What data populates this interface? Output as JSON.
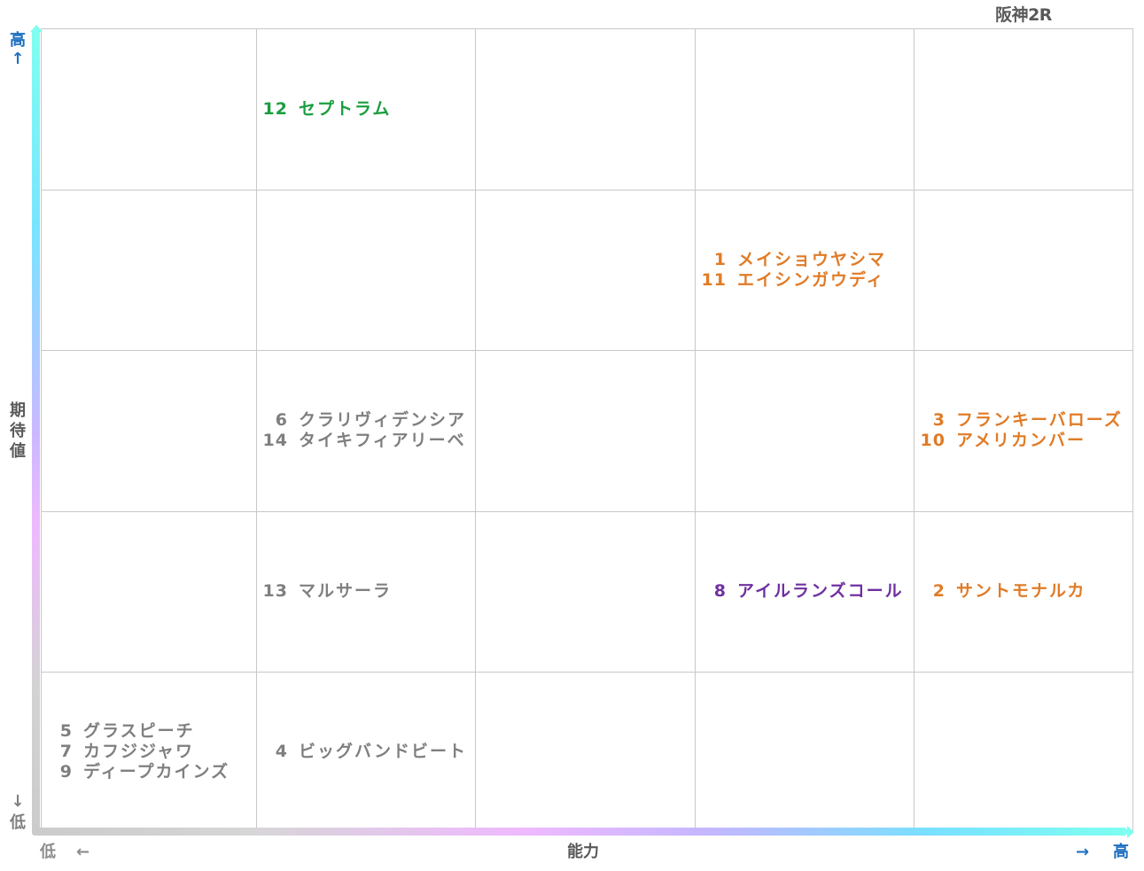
{
  "chart_data": {
    "type": "scatter",
    "title": "阪神2R",
    "xlabel": "能力",
    "ylabel": "期待値",
    "x_low_label": "低",
    "x_high_label": "高",
    "y_high_label": "高",
    "y_low_label": "低",
    "x_arrow_left": "←",
    "x_arrow_right": "→",
    "y_arrow_up": "↑",
    "y_arrow_down": "↓",
    "grid": true,
    "x_levels": 5,
    "y_levels": 5,
    "colors": {
      "green": "#1a9e3f",
      "orange": "#e07b26",
      "gray": "#7f7f7f",
      "purple": "#7030a0",
      "blue": "#1f6fc0",
      "axis_text": "#595959"
    },
    "cells": [
      {
        "x": 2,
        "y": 5,
        "color": "green",
        "items": [
          {
            "num": "12",
            "name": "セプトラム"
          }
        ]
      },
      {
        "x": 4,
        "y": 4,
        "color": "orange",
        "items": [
          {
            "num": "1",
            "name": "メイショウヤシマ"
          },
          {
            "num": "11",
            "name": "エイシンガウディ"
          }
        ]
      },
      {
        "x": 2,
        "y": 3,
        "color": "gray",
        "items": [
          {
            "num": "6",
            "name": "クラリヴィデンシア"
          },
          {
            "num": "14",
            "name": "タイキフィアリーベ"
          }
        ]
      },
      {
        "x": 5,
        "y": 3,
        "color": "orange",
        "items": [
          {
            "num": "3",
            "name": "フランキーバローズ"
          },
          {
            "num": "10",
            "name": "アメリカンバー"
          }
        ]
      },
      {
        "x": 2,
        "y": 2,
        "color": "gray",
        "items": [
          {
            "num": "13",
            "name": "マルサーラ"
          }
        ]
      },
      {
        "x": 4,
        "y": 2,
        "color": "purple",
        "items": [
          {
            "num": "8",
            "name": "アイルランズコール"
          }
        ]
      },
      {
        "x": 5,
        "y": 2,
        "color": "orange",
        "items": [
          {
            "num": "2",
            "name": "サントモナルカ"
          }
        ]
      },
      {
        "x": 1,
        "y": 1,
        "color": "gray",
        "items": [
          {
            "num": "5",
            "name": "グラスピーチ"
          },
          {
            "num": "7",
            "name": "カフジジャワ"
          },
          {
            "num": "9",
            "name": "ディープカインズ"
          }
        ]
      },
      {
        "x": 2,
        "y": 1,
        "color": "gray",
        "items": [
          {
            "num": "4",
            "name": "ビッグバンドビート"
          }
        ]
      }
    ]
  }
}
